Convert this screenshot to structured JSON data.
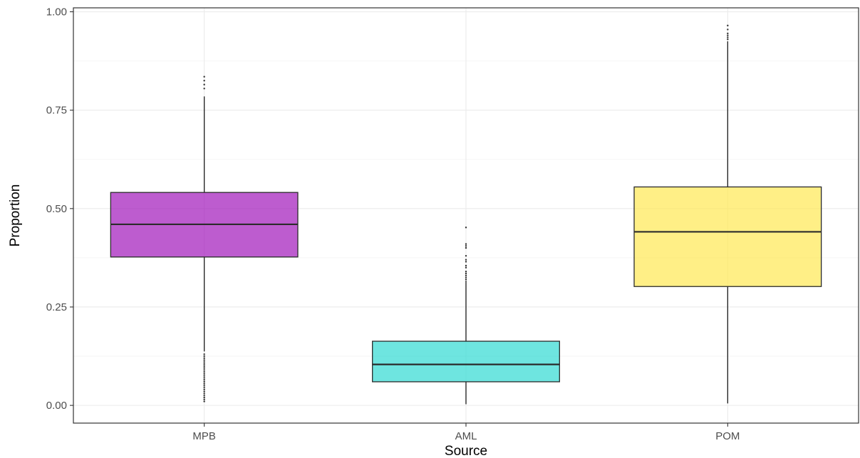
{
  "chart_data": {
    "type": "box",
    "title": "",
    "xlabel": "Source",
    "ylabel": "Proportion",
    "ylim": [
      -0.045,
      1.01
    ],
    "y_ticks": [
      0.0,
      0.25,
      0.5,
      0.75,
      1.0
    ],
    "y_tick_labels": [
      "0.00",
      "0.25",
      "0.50",
      "0.75",
      "1.00"
    ],
    "grid": true,
    "legend": "none",
    "categories": [
      "MPB",
      "AML",
      "POM"
    ],
    "boxes": [
      {
        "category": "MPB",
        "color": "#9e0fb8",
        "q1": 0.377,
        "median": 0.46,
        "q3": 0.541,
        "whisker_low": 0.137,
        "whisker_high": 0.785,
        "outliers": [
          0.01,
          0.015,
          0.02,
          0.025,
          0.03,
          0.035,
          0.04,
          0.045,
          0.05,
          0.055,
          0.06,
          0.065,
          0.07,
          0.075,
          0.08,
          0.085,
          0.09,
          0.095,
          0.1,
          0.105,
          0.11,
          0.115,
          0.12,
          0.125,
          0.13,
          0.805,
          0.815,
          0.825,
          0.835
        ]
      },
      {
        "category": "AML",
        "color": "#29d9d1",
        "q1": 0.06,
        "median": 0.104,
        "q3": 0.163,
        "whisker_low": 0.003,
        "whisker_high": 0.317,
        "outliers": [
          0.32,
          0.325,
          0.33,
          0.335,
          0.34,
          0.35,
          0.355,
          0.365,
          0.37,
          0.38,
          0.4,
          0.405,
          0.41,
          0.452
        ]
      },
      {
        "category": "POM",
        "color": "#ffe84d",
        "q1": 0.302,
        "median": 0.441,
        "q3": 0.555,
        "whisker_low": 0.005,
        "whisker_high": 0.925,
        "outliers": [
          0.93,
          0.935,
          0.94,
          0.945,
          0.955,
          0.965
        ]
      }
    ]
  }
}
